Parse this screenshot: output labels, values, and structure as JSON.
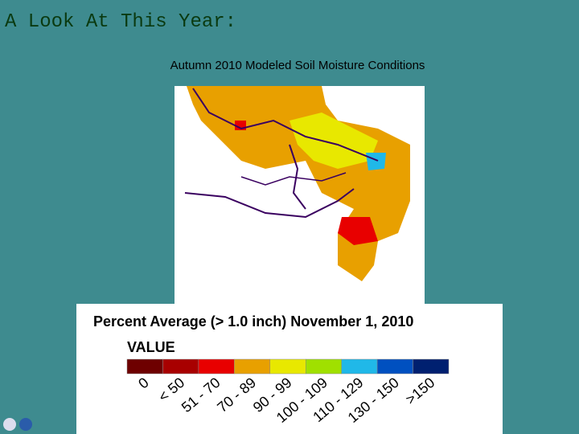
{
  "header": {
    "title": "A Look At This Year:"
  },
  "map": {
    "title": "Autumn 2010 Modeled Soil Moisture Conditions"
  },
  "legend": {
    "title": "Percent Average (> 1.0 inch) November 1, 2010",
    "value_label": "VALUE",
    "classes": [
      {
        "label": "0",
        "color": "#6e0000"
      },
      {
        "label": "< 50",
        "color": "#a80000"
      },
      {
        "label": "51 - 70",
        "color": "#e80000"
      },
      {
        "label": "70 - 89",
        "color": "#e8a000"
      },
      {
        "label": "90 - 99",
        "color": "#e8e800"
      },
      {
        "label": "100 - 109",
        "color": "#a0e000"
      },
      {
        "label": "110 - 129",
        "color": "#20b8e8"
      },
      {
        "label": "130 - 150",
        "color": "#0050c0"
      },
      {
        "label": ">150",
        "color": "#002070"
      }
    ]
  }
}
